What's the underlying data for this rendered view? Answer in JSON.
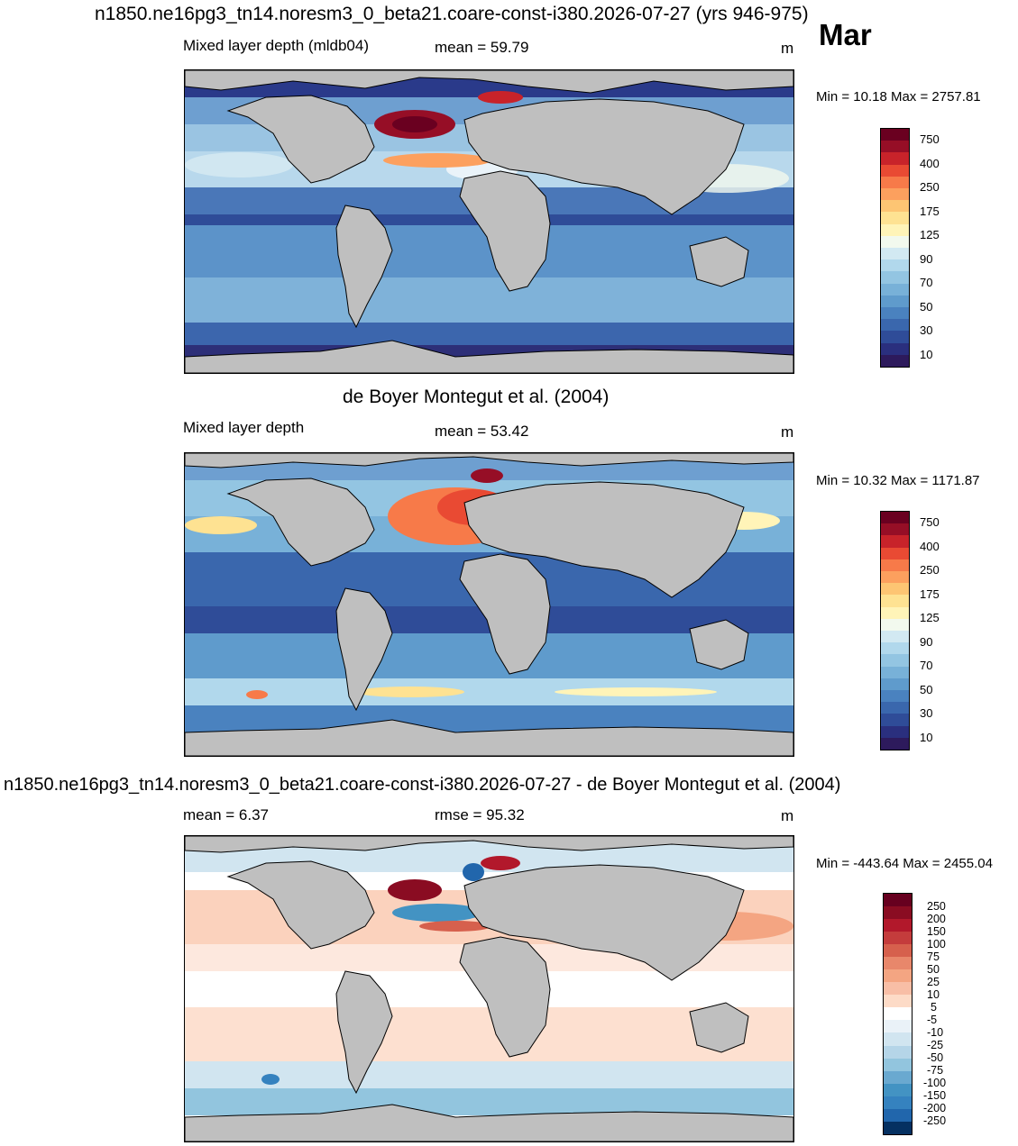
{
  "title": "n1850.ne16pg3_tn14.noresm3_0_beta21.coare-const-i380.2026-07-27 (yrs 946-975)",
  "month": "Mar",
  "colors": {
    "land": "#bfbfbf",
    "mld_scale": [
      "#2d1a5c",
      "#2a2f7e",
      "#2f4c98",
      "#3a67ad",
      "#4a82bf",
      "#5f9bcc",
      "#78b1d8",
      "#93c5e2",
      "#b1d8ec",
      "#d2e9f2",
      "#f2f9ee",
      "#fff4b8",
      "#fee292",
      "#fdc573",
      "#fca05e",
      "#f77a49",
      "#e94a33",
      "#c8232a",
      "#960e26",
      "#6a0020"
    ],
    "diff_scale": [
      "#053061",
      "#10478a",
      "#2166ac",
      "#3582bf",
      "#4393c3",
      "#6aa9d0",
      "#92c5de",
      "#b5d5e8",
      "#d1e5f0",
      "#eaf2f8",
      "#ffffff",
      "#fde8de",
      "#fddbc7",
      "#f8bea6",
      "#f4a582",
      "#e8876b",
      "#d6604d",
      "#c43c3c",
      "#b2182b",
      "#8a0c22",
      "#67001f"
    ]
  },
  "panels": [
    {
      "left_label": "Mixed layer depth (mldb04)",
      "center_label": "mean =  59.79",
      "unit": "m",
      "minmax": "Min =  10.18 Max = 2757.81",
      "colorbar_ticks": [
        "750",
        "400",
        "250",
        "175",
        "125",
        "90",
        "70",
        "50",
        "30",
        "10"
      ]
    },
    {
      "header": "de Boyer Montegut et al. (2004)",
      "left_label": "Mixed layer depth",
      "center_label": "mean =  53.42",
      "unit": "m",
      "minmax": "Min =  10.32 Max = 1171.87",
      "colorbar_ticks": [
        "750",
        "400",
        "250",
        "175",
        "125",
        "90",
        "70",
        "50",
        "30",
        "10"
      ]
    },
    {
      "header": "n1850.ne16pg3_tn14.noresm3_0_beta21.coare-const-i380.2026-07-27 - de Boyer Montegut et al. (2004)",
      "left_label": "mean =   6.37",
      "center_label": "rmse =  95.32",
      "unit": "m",
      "minmax": "Min = -443.64 Max = 2455.04",
      "colorbar_ticks": [
        "250",
        "200",
        "150",
        "100",
        "75",
        "50",
        "25",
        "10",
        "5",
        "-5",
        "-10",
        "-25",
        "-50",
        "-75",
        "-100",
        "-150",
        "-200",
        "-250"
      ]
    }
  ]
}
